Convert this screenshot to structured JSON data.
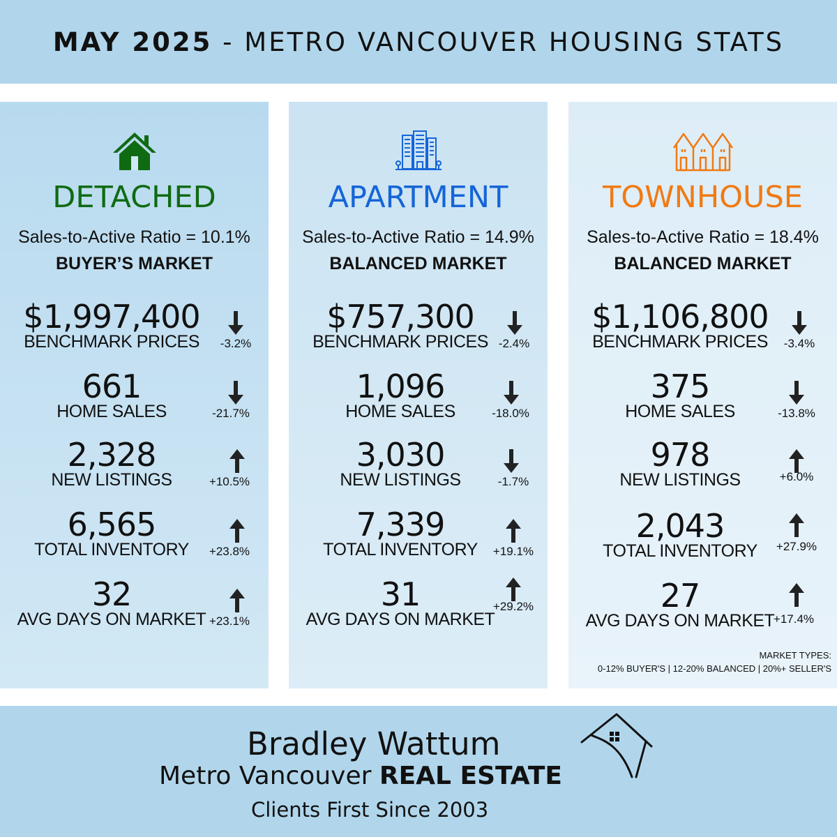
{
  "header": {
    "bold": "MAY 2025",
    "rest": " - METRO VANCOUVER HOUSING STATS"
  },
  "colors": {
    "detached": "#0f6b12",
    "apartment": "#1565d8",
    "townhouse": "#f07a13",
    "band": "#b1d6ec"
  },
  "columns": [
    {
      "icon": "house-icon",
      "title": "DETACHED",
      "ratio": "Sales-to-Active Ratio = 10.1%",
      "market": "BUYER’S MARKET",
      "stats": [
        {
          "value": "$1,997,400",
          "label": "BENCHMARK PRICES",
          "direction": "down",
          "change": "-3.2%"
        },
        {
          "value": "661",
          "label": "HOME SALES",
          "direction": "down",
          "change": "-21.7%"
        },
        {
          "value": "2,328",
          "label": "NEW LISTINGS",
          "direction": "up",
          "change": "+10.5%"
        },
        {
          "value": "6,565",
          "label": "TOTAL INVENTORY",
          "direction": "up",
          "change": "+23.8%"
        },
        {
          "value": "32",
          "label": "AVG DAYS ON MARKET",
          "direction": "up",
          "change": "+23.1%"
        }
      ]
    },
    {
      "icon": "apartment-building-icon",
      "title": "APARTMENT",
      "ratio": "Sales-to-Active Ratio = 14.9%",
      "market": "BALANCED MARKET",
      "stats": [
        {
          "value": "$757,300",
          "label": "BENCHMARK PRICES",
          "direction": "down",
          "change": "-2.4%"
        },
        {
          "value": "1,096",
          "label": "HOME SALES",
          "direction": "down",
          "change": "-18.0%"
        },
        {
          "value": "3,030",
          "label": "NEW LISTINGS",
          "direction": "down",
          "change": "-1.7%"
        },
        {
          "value": "7,339",
          "label": "TOTAL INVENTORY",
          "direction": "up",
          "change": "+19.1%"
        },
        {
          "value": "31",
          "label": "AVG DAYS ON MARKET",
          "direction": "up",
          "change": "+29.2%"
        }
      ]
    },
    {
      "icon": "townhouse-icon",
      "title": "TOWNHOUSE",
      "ratio": "Sales-to-Active Ratio = 18.4%",
      "market": "BALANCED MARKET",
      "stats": [
        {
          "value": "$1,106,800",
          "label": "BENCHMARK PRICES",
          "direction": "down",
          "change": "-3.4%"
        },
        {
          "value": "375",
          "label": "HOME SALES",
          "direction": "down",
          "change": "-13.8%"
        },
        {
          "value": "978",
          "label": "NEW LISTINGS",
          "direction": "up",
          "change": "+6.0%"
        },
        {
          "value": "2,043",
          "label": "TOTAL INVENTORY",
          "direction": "up",
          "change": "+27.9%"
        },
        {
          "value": "27",
          "label": "AVG DAYS ON MARKET",
          "direction": "up",
          "change": "+17.4%"
        }
      ]
    }
  ],
  "market_types": {
    "heading": "MARKET TYPES:",
    "ranges": "0-12% BUYER'S | 12-20% BALANCED | 20%+ SELLER'S"
  },
  "footer": {
    "name": "Bradley Wattum",
    "tagline_regular": "Metro Vancouver ",
    "tagline_bold": "REAL ESTATE",
    "since": "Clients First Since 2003",
    "logo_icon": "house-roof-logo-icon"
  }
}
